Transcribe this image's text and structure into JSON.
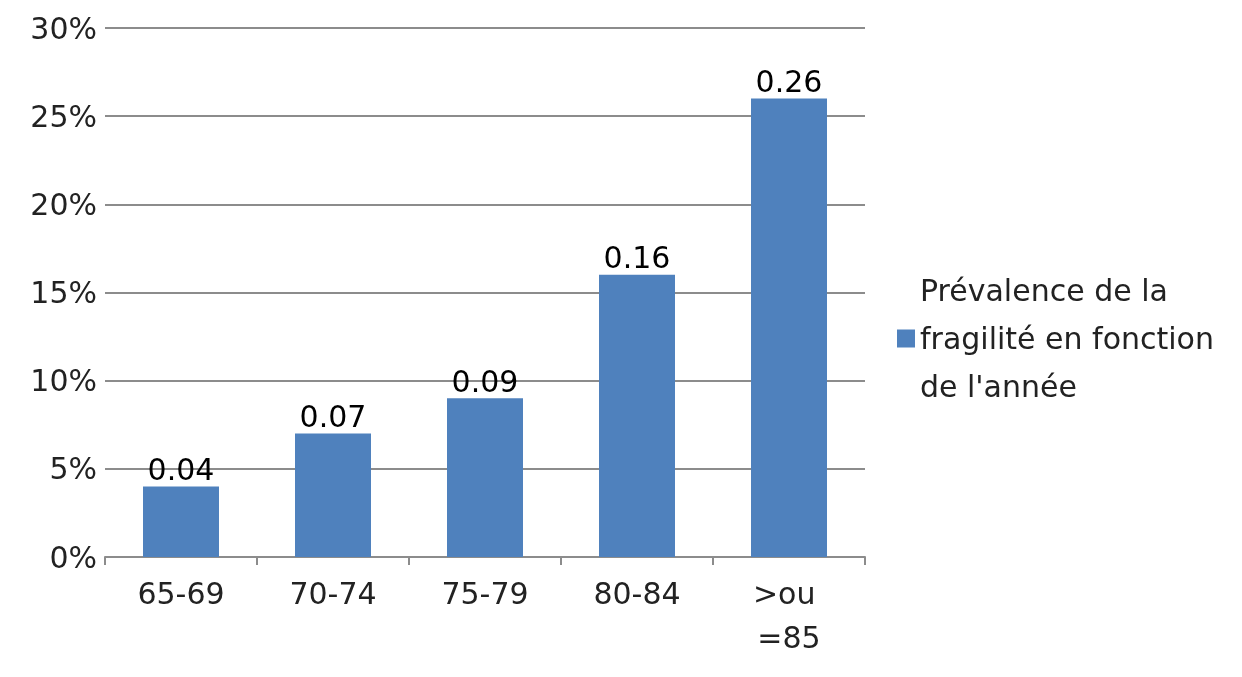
{
  "chart_data": {
    "type": "bar",
    "categories": [
      "65-69",
      "70-74",
      "75-79",
      "80-84",
      ">ou =85"
    ],
    "series": [
      {
        "name": "Prévalence de la fragilité en fonction de l'année",
        "color": "#4f81bd",
        "values": [
          0.04,
          0.07,
          0.09,
          0.16,
          0.26
        ]
      }
    ],
    "ylim": [
      0,
      0.3
    ],
    "yticks": [
      {
        "value": 0,
        "label": "0%"
      },
      {
        "value": 0.05,
        "label": "5%"
      },
      {
        "value": 0.1,
        "label": "10%"
      },
      {
        "value": 0.15,
        "label": "15%"
      },
      {
        "value": 0.2,
        "label": "20%"
      },
      {
        "value": 0.25,
        "label": "25%"
      },
      {
        "value": 0.3,
        "label": "30%"
      }
    ],
    "grid": "y",
    "legend": "right",
    "data_labels": true
  }
}
